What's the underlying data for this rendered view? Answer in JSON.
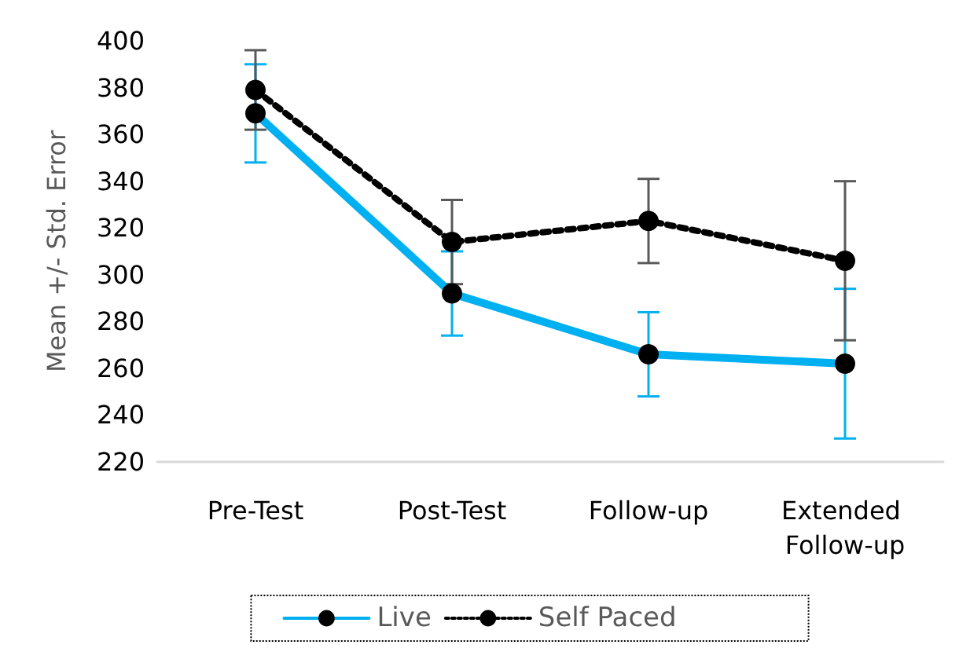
{
  "chart_data": {
    "type": "line",
    "ylabel": "Mean +/- Std. Error",
    "categories": [
      "Pre-Test",
      "Post-Test",
      "Follow-up",
      "Extended Follow-up"
    ],
    "series": [
      {
        "name": "Live",
        "color": "#00b0f0",
        "line_style": "solid",
        "values": [
          369,
          292,
          266,
          262
        ],
        "errors": [
          21,
          18,
          18,
          32
        ]
      },
      {
        "name": "Self Paced",
        "color": "#000000",
        "line_style": "dotted",
        "values": [
          379,
          314,
          323,
          306
        ],
        "errors": [
          17,
          18,
          18,
          34
        ]
      }
    ],
    "ylim": [
      220,
      400
    ],
    "yticks": [
      220,
      240,
      260,
      280,
      300,
      320,
      340,
      360,
      380,
      400
    ],
    "grid": false,
    "legend": "bottom",
    "marker": "circle"
  }
}
